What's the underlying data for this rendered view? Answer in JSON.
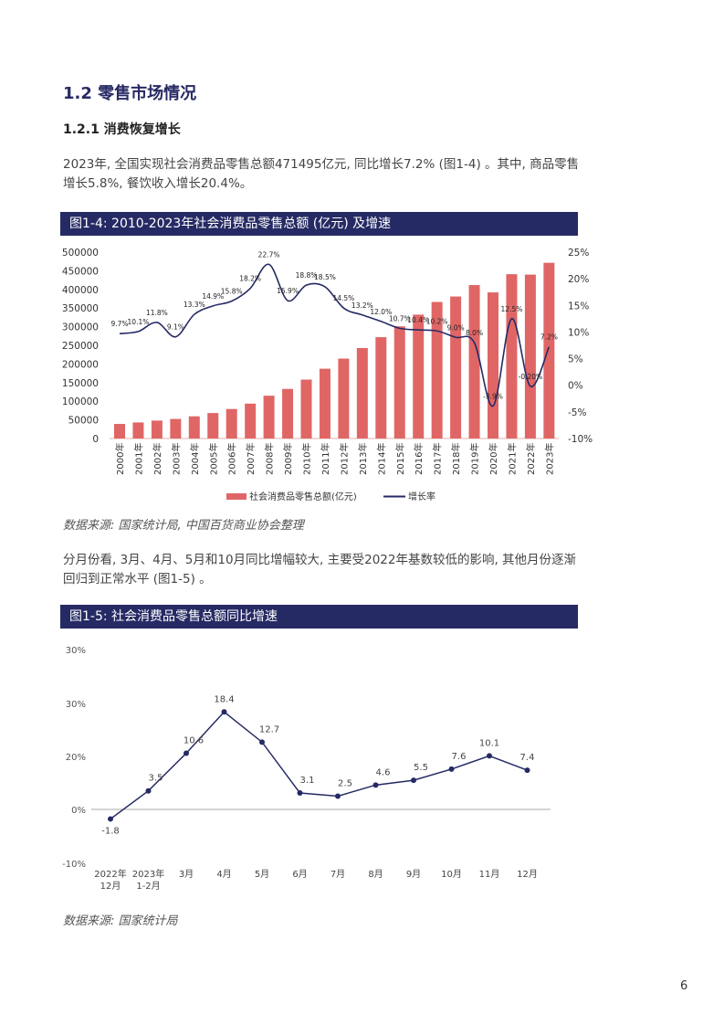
{
  "section_title": "1.2 零售市场情况",
  "subsection_title": "1.2.1 消费恢复增长",
  "paragraph1": "2023年, 全国实现社会消费品零售总额471495亿元, 同比增长7.2% (图1-4) 。其中, 商品零售增长5.8%, 餐饮收入增长20.4%。",
  "paragraph2": "分月份看, 3月、4月、5月和10月同比增幅较大, 主要受2022年基数较低的影响, 其他月份逐渐回归到正常水平 (图1-5) 。",
  "figure1_title": "图1-4: 2010-2023年社会消费品零售总额 (亿元) 及增速",
  "figure1_source": "数据来源: 国家统计局, 中国百货商业协会整理",
  "figure2_title": "图1-5: 社会消费品零售总额同比增速",
  "figure2_source": "数据来源: 国家统计局",
  "page_number": "6",
  "colors": {
    "header": "#262a64",
    "bar": "#e06666",
    "line": "#262a64"
  },
  "chart_data": [
    {
      "type": "bar",
      "categories": [
        "2000年",
        "2001年",
        "2002年",
        "2003年",
        "2004年",
        "2005年",
        "2006年",
        "2007年",
        "2008年",
        "2009年",
        "2010年",
        "2011年",
        "2012年",
        "2013年",
        "2014年",
        "2015年",
        "2016年",
        "2017年",
        "2018年",
        "2019年",
        "2020年",
        "2021年",
        "2022年",
        "2023年"
      ],
      "series": [
        {
          "name": "社会消费品零售总额(亿元)",
          "type": "bar",
          "axis": "left",
          "values": [
            39106,
            43055,
            48136,
            52516,
            59501,
            68353,
            79145,
            93572,
            114830,
            133048,
            158008,
            187206,
            214433,
            242843,
            271896,
            300931,
            332316,
            366262,
            380987,
            411649,
            391981,
            440823,
            439733,
            471495
          ]
        },
        {
          "name": "增长率",
          "type": "line",
          "axis": "right",
          "values": [
            9.7,
            10.1,
            11.8,
            9.1,
            13.3,
            14.9,
            15.8,
            18.2,
            22.7,
            15.9,
            18.8,
            18.5,
            14.5,
            13.2,
            12.0,
            10.7,
            10.4,
            10.2,
            9.0,
            8.0,
            -3.9,
            12.5,
            -0.2,
            7.2
          ],
          "labels": [
            "9.7%",
            "10.1%",
            "11.8%",
            "9.1%",
            "13.3%",
            "14.9%",
            "15.8%",
            "18.2%",
            "22.7%",
            "15.9%",
            "18.8%",
            "18.5%",
            "14.5%",
            "13.2%",
            "12.0%",
            "10.7%",
            "10.4%",
            "10.2%",
            "9.0%",
            "8.0%",
            "-3.9%",
            "12.5%",
            "-0.20%",
            "7.2%"
          ]
        }
      ],
      "left_ticks": [
        "500000",
        "450000",
        "400000",
        "350000",
        "300000",
        "250000",
        "200000",
        "150000",
        "100000",
        "50000",
        "0"
      ],
      "right_ticks": [
        "25%",
        "20%",
        "15%",
        "10%",
        "5%",
        "0%",
        "-5%",
        "-10%"
      ],
      "ylim_left": [
        0,
        500000
      ],
      "ylim_right": [
        -10,
        25
      ],
      "legend": "bottom"
    },
    {
      "type": "line",
      "categories": [
        [
          "2022年",
          "12月"
        ],
        [
          "2023年",
          "1-2月"
        ],
        [
          "3月"
        ],
        [
          "4月"
        ],
        [
          "5月"
        ],
        [
          "6月"
        ],
        [
          "7月"
        ],
        [
          "8月"
        ],
        [
          "9月"
        ],
        [
          "10月"
        ],
        [
          "11月"
        ],
        [
          "12月"
        ]
      ],
      "values": [
        -1.8,
        3.5,
        10.6,
        18.4,
        12.7,
        3.1,
        2.5,
        4.6,
        5.5,
        7.6,
        10.1,
        7.4
      ],
      "labels": [
        "-1.8",
        "3.5",
        "10.6",
        "18.4",
        "12.7",
        "3.1",
        "2.5",
        "4.6",
        "5.5",
        "7.6",
        "10.1",
        "7.4"
      ],
      "y_ticks": [
        "30%",
        "30%",
        "20%",
        "0%",
        "-10%"
      ]
    }
  ]
}
